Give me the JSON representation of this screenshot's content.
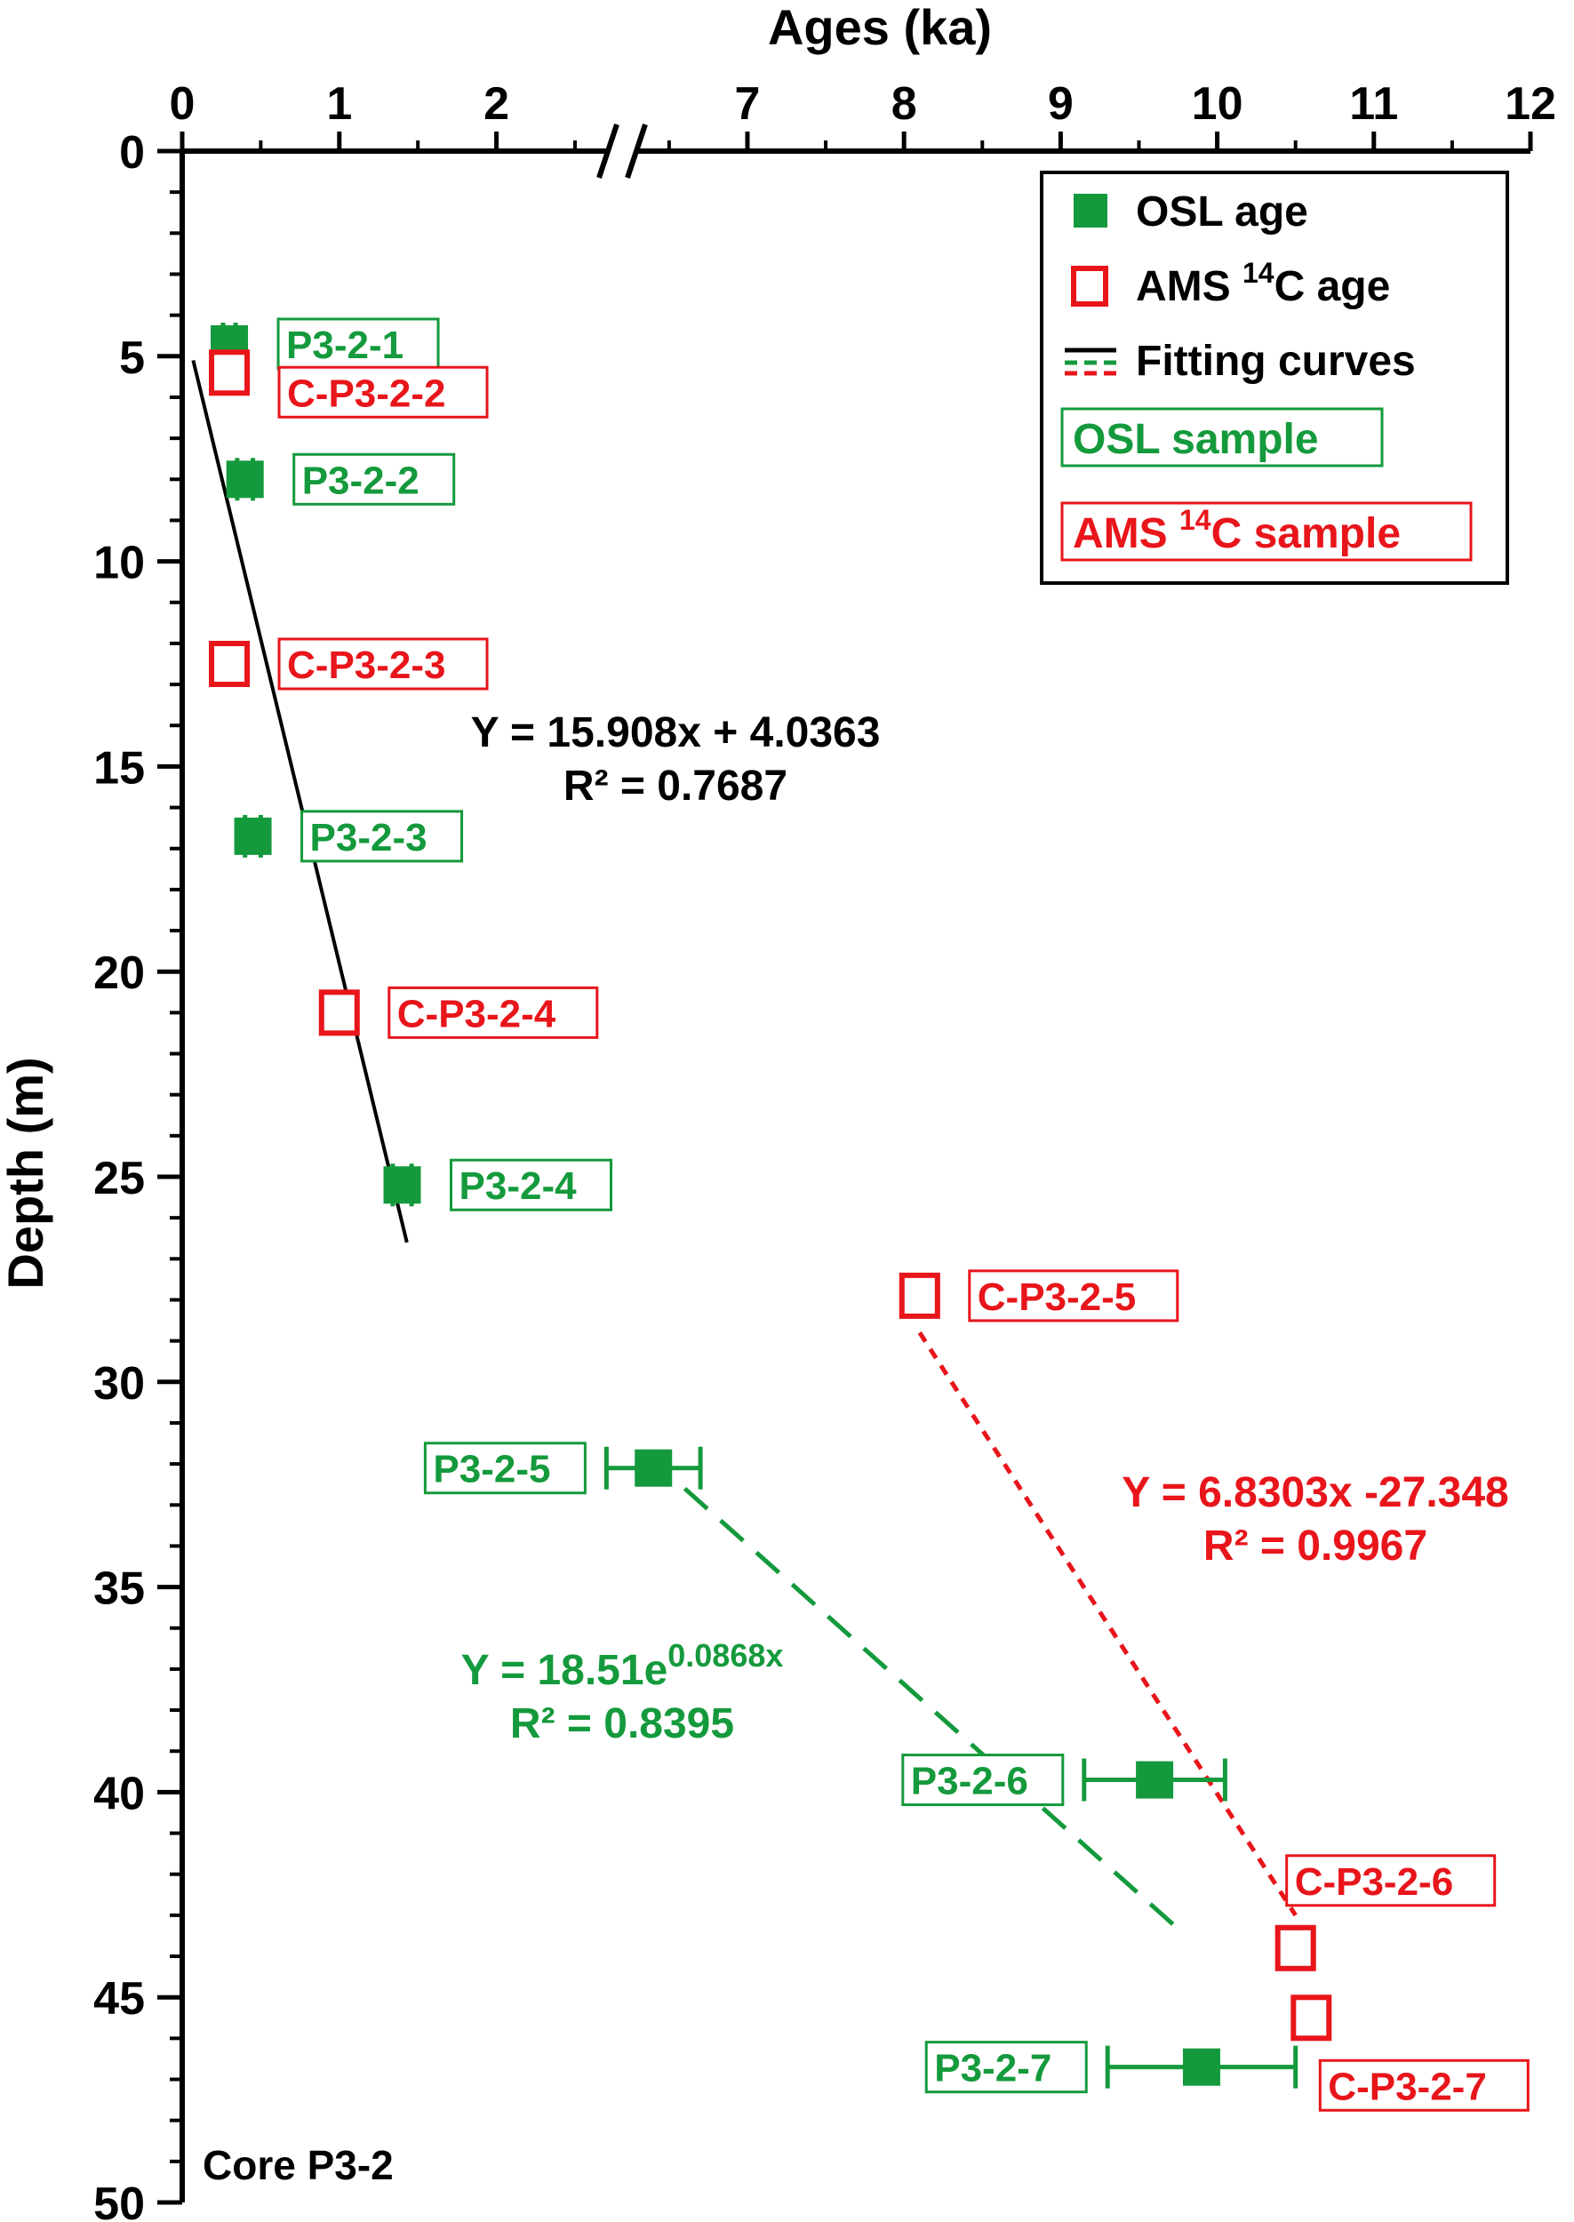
{
  "chart_data": {
    "type": "scatter",
    "title": "",
    "core_label": "Core P3-2",
    "xlabel": "Ages (ka)",
    "ylabel": "Depth (m)",
    "x_axis_position": "top",
    "x_axis_break": true,
    "xlim": [
      0,
      12
    ],
    "ylim": [
      0,
      50
    ],
    "y_inverted": true,
    "x_segments": [
      {
        "from": 0,
        "to": 2.8
      },
      {
        "from": 6.2,
        "to": 12
      }
    ],
    "x_tick_labels": [
      "0",
      "1",
      "2",
      "7",
      "8",
      "9",
      "10",
      "11",
      "12"
    ],
    "x_tick_values": [
      0,
      1,
      2,
      7,
      8,
      9,
      10,
      11,
      12
    ],
    "y_tick_labels": [
      "0",
      "5",
      "10",
      "15",
      "20",
      "25",
      "30",
      "35",
      "40",
      "45",
      "50"
    ],
    "y_tick_values": [
      0,
      5,
      10,
      15,
      20,
      25,
      30,
      35,
      40,
      45,
      50
    ],
    "colors": {
      "osl": "#149a3c",
      "ams": "#e8151b",
      "fit": "#000000",
      "axis": "#000000"
    },
    "legend": {
      "position": "top-right",
      "items": [
        {
          "label": "OSL age",
          "symbol": "filled-square",
          "color": "#149a3c"
        },
        {
          "label": "AMS ",
          "sup": "14",
          "label_end": "C age",
          "symbol": "open-square",
          "color": "#e8151b"
        },
        {
          "label": "Fitting curves",
          "symbol": "lines",
          "color": "#000000"
        },
        {
          "label": "OSL sample",
          "symbol": "box-green",
          "color": "#149a3c"
        },
        {
          "label": "AMS ",
          "sup": "14",
          "label_end": "C sample",
          "symbol": "box-red",
          "color": "#e8151b"
        }
      ]
    },
    "series": [
      {
        "name": "OSL age",
        "marker": "filled-square",
        "color": "#149a3c",
        "points": [
          {
            "id": "P3-2-1",
            "x": 0.3,
            "y": 4.7,
            "xerr": 0.04,
            "label_side": "right"
          },
          {
            "id": "P3-2-2",
            "x": 0.4,
            "y": 8.0,
            "xerr": 0.05,
            "label_side": "right"
          },
          {
            "id": "P3-2-3",
            "x": 0.45,
            "y": 16.7,
            "xerr": 0.05,
            "label_side": "right"
          },
          {
            "id": "P3-2-4",
            "x": 1.4,
            "y": 25.2,
            "xerr": 0.06,
            "label_side": "right"
          },
          {
            "id": "P3-2-5",
            "x": 6.4,
            "y": 32.1,
            "xerr": 0.3,
            "label_side": "left"
          },
          {
            "id": "P3-2-6",
            "x": 9.6,
            "y": 39.7,
            "xerr": 0.45,
            "label_side": "left"
          },
          {
            "id": "P3-2-7",
            "x": 9.9,
            "y": 46.7,
            "xerr": 0.6,
            "label_side": "left"
          }
        ]
      },
      {
        "name": "AMS 14C age",
        "marker": "open-square",
        "color": "#e8151b",
        "points": [
          {
            "id": "C-P3-2-2",
            "x": 0.3,
            "y": 5.4,
            "xerr": 0.03,
            "label_side": "right"
          },
          {
            "id": "C-P3-2-3",
            "x": 0.3,
            "y": 12.5,
            "xerr": 0.03,
            "label_side": "right"
          },
          {
            "id": "C-P3-2-4",
            "x": 1.0,
            "y": 21.0,
            "xerr": 0.05,
            "label_side": "right"
          },
          {
            "id": "C-P3-2-5",
            "x": 8.1,
            "y": 27.9,
            "xerr": 0.1,
            "label_side": "right"
          },
          {
            "id": "C-P3-2-6",
            "x": 10.5,
            "y": 43.8,
            "xerr": 0.04,
            "label_side": "above-right"
          },
          {
            "id": "C-P3-2-7",
            "x": 10.6,
            "y": 45.5,
            "xerr": 0.04,
            "label_side": "below-right"
          }
        ]
      }
    ],
    "fits": [
      {
        "id": "linear-black",
        "color": "#000000",
        "style": "solid",
        "equation": "Y = 15.908x + 4.0363",
        "r2": "R² = 0.7687",
        "from": [
          0.07,
          5.1
        ],
        "to": [
          1.43,
          26.6
        ]
      },
      {
        "id": "red-dashed",
        "color": "#e8151b",
        "style": "dashed",
        "equation": "Y = 6.8303x -27.348",
        "r2": "R² = 0.9967",
        "from": [
          8.1,
          28.8
        ],
        "to": [
          10.5,
          43.0
        ]
      },
      {
        "id": "green-dashed",
        "color": "#149a3c",
        "style": "dashed",
        "equation_base": "Y = 18.51e",
        "equation_sup": "0.0868x",
        "r2": "R² = 0.8395",
        "from": [
          6.6,
          32.6
        ],
        "to": [
          9.8,
          43.5
        ]
      }
    ]
  }
}
